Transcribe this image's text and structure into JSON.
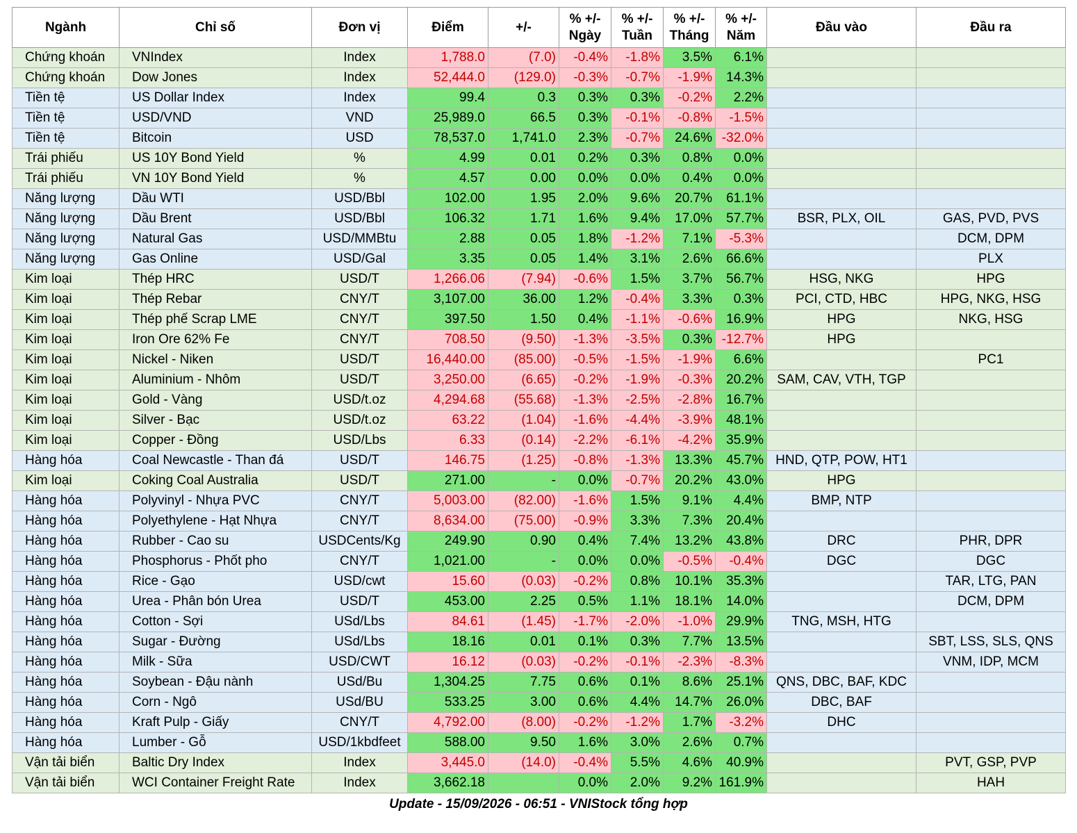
{
  "table": {
    "header": [
      "Ngành",
      "Chỉ số",
      "Đơn vị",
      "Điểm",
      "+/-",
      "% +/-\nNgày",
      "% +/-\nTuần",
      "% +/-\nTháng",
      "% +/-\nNăm",
      "Đầu vào",
      "Đầu ra"
    ],
    "rows": [
      [
        "Chứng khoán",
        "VNIndex",
        "Index",
        "1,788.0",
        "(7.0)",
        "-0.4%",
        "-1.8%",
        "3.5%",
        "6.1%",
        null,
        null
      ],
      [
        "Chứng khoán",
        "Dow Jones",
        "Index",
        "52,444.0",
        "(129.0)",
        "-0.3%",
        "-0.7%",
        "-1.9%",
        "14.3%",
        null,
        null
      ],
      [
        "Tiền tệ",
        "US Dollar Index",
        "Index",
        "99.4",
        "0.3",
        "0.3%",
        "0.3%",
        "-0.2%",
        "2.2%",
        null,
        null
      ],
      [
        "Tiền tệ",
        "USD/VND",
        "VND",
        "25,989.0",
        "66.5",
        "0.3%",
        "-0.1%",
        "-0.8%",
        "-1.5%",
        null,
        null
      ],
      [
        "Tiền tệ",
        "Bitcoin",
        "USD",
        "78,537.0",
        "1,741.0",
        "2.3%",
        "-0.7%",
        "24.6%",
        "-32.0%",
        null,
        null
      ],
      [
        "Trái phiếu",
        "US 10Y Bond Yield",
        "%",
        "4.99",
        "0.01",
        "0.2%",
        "0.3%",
        "0.8%",
        "0.0%",
        null,
        null
      ],
      [
        "Trái phiếu",
        "VN 10Y Bond Yield",
        "%",
        "4.57",
        "0.00",
        "0.0%",
        "0.0%",
        "0.4%",
        "0.0%",
        null,
        null
      ],
      [
        "Năng lượng",
        "Dầu WTI",
        "USD/Bbl",
        "102.00",
        "1.95",
        "2.0%",
        "9.6%",
        "20.7%",
        "61.1%",
        null,
        null
      ],
      [
        "Năng lượng",
        "Dầu Brent",
        "USD/Bbl",
        "106.32",
        "1.71",
        "1.6%",
        "9.4%",
        "17.0%",
        "57.7%",
        "BSR, PLX, OIL",
        "GAS, PVD, PVS"
      ],
      [
        "Năng lượng",
        "Natural Gas",
        "USD/MMBtu",
        "2.88",
        "0.05",
        "1.8%",
        "-1.2%",
        "7.1%",
        "-5.3%",
        null,
        "DCM, DPM"
      ],
      [
        "Năng lượng",
        "Gas Online",
        "USD/Gal",
        "3.35",
        "0.05",
        "1.4%",
        "3.1%",
        "2.6%",
        "66.6%",
        null,
        "PLX"
      ],
      [
        "Kim loại",
        "Thép HRC",
        "USD/T",
        "1,266.06",
        "(7.94)",
        "-0.6%",
        "1.5%",
        "3.7%",
        "56.7%",
        "HSG, NKG",
        "HPG"
      ],
      [
        "Kim loại",
        "Thép Rebar",
        "CNY/T",
        "3,107.00",
        "36.00",
        "1.2%",
        "-0.4%",
        "3.3%",
        "0.3%",
        "PCI, CTD, HBC",
        "HPG, NKG, HSG"
      ],
      [
        "Kim loại",
        "Thép phế Scrap LME",
        "CNY/T",
        "397.50",
        "1.50",
        "0.4%",
        "-1.1%",
        "-0.6%",
        "16.9%",
        "HPG",
        "NKG, HSG"
      ],
      [
        "Kim loại",
        "Iron Ore 62% Fe",
        "CNY/T",
        "708.50",
        "(9.50)",
        "-1.3%",
        "-3.5%",
        "0.3%",
        "-12.7%",
        "HPG",
        null
      ],
      [
        "Kim loại",
        "Nickel - Niken",
        "USD/T",
        "16,440.00",
        "(85.00)",
        "-0.5%",
        "-1.5%",
        "-1.9%",
        "6.6%",
        null,
        "PC1"
      ],
      [
        "Kim loại",
        "Aluminium - Nhôm",
        "USD/T",
        "3,250.00",
        "(6.65)",
        "-0.2%",
        "-1.9%",
        "-0.3%",
        "20.2%",
        "SAM, CAV, VTH, TGP",
        null
      ],
      [
        "Kim loại",
        "Gold - Vàng",
        "USD/t.oz",
        "4,294.68",
        "(55.68)",
        "-1.3%",
        "-2.5%",
        "-2.8%",
        "16.7%",
        null,
        null
      ],
      [
        "Kim loại",
        "Silver - Bạc",
        "USD/t.oz",
        "63.22",
        "(1.04)",
        "-1.6%",
        "-4.4%",
        "-3.9%",
        "48.1%",
        null,
        null
      ],
      [
        "Kim loại",
        "Copper - Đồng",
        "USD/Lbs",
        "6.33",
        "(0.14)",
        "-2.2%",
        "-6.1%",
        "-4.2%",
        "35.9%",
        null,
        null
      ],
      [
        "Hàng hóa",
        "Coal Newcastle - Than đá",
        "USD/T",
        "146.75",
        "(1.25)",
        "-0.8%",
        "-1.3%",
        "13.3%",
        "45.7%",
        "HND, QTP, POW, HT1",
        null
      ],
      [
        "Kim loại",
        "Coking Coal Australia",
        "USD/T",
        "271.00",
        "-",
        "0.0%",
        "-0.7%",
        "20.2%",
        "43.0%",
        "HPG",
        null
      ],
      [
        "Hàng hóa",
        "Polyvinyl - Nhựa PVC",
        "CNY/T",
        "5,003.00",
        "(82.00)",
        "-1.6%",
        "1.5%",
        "9.1%",
        "4.4%",
        "BMP, NTP",
        null
      ],
      [
        "Hàng hóa",
        "Polyethylene - Hạt Nhựa",
        "CNY/T",
        "8,634.00",
        "(75.00)",
        "-0.9%",
        "3.3%",
        "7.3%",
        "20.4%",
        null,
        null
      ],
      [
        "Hàng hóa",
        "Rubber - Cao su",
        "USDCents/Kg",
        "249.90",
        "0.90",
        "0.4%",
        "7.4%",
        "13.2%",
        "43.8%",
        "DRC",
        "PHR, DPR"
      ],
      [
        "Hàng hóa",
        "Phosphorus - Phốt pho",
        "CNY/T",
        "1,021.00",
        "-",
        "0.0%",
        "0.0%",
        "-0.5%",
        "-0.4%",
        "DGC",
        "DGC"
      ],
      [
        "Hàng hóa",
        "Rice - Gạo",
        "USD/cwt",
        "15.60",
        "(0.03)",
        "-0.2%",
        "0.8%",
        "10.1%",
        "35.3%",
        null,
        "TAR, LTG, PAN"
      ],
      [
        "Hàng hóa",
        "Urea - Phân bón Urea",
        "USD/T",
        "453.00",
        "2.25",
        "0.5%",
        "1.1%",
        "18.1%",
        "14.0%",
        null,
        "DCM, DPM"
      ],
      [
        "Hàng hóa",
        "Cotton - Sợi",
        "USd/Lbs",
        "84.61",
        "(1.45)",
        "-1.7%",
        "-2.0%",
        "-1.0%",
        "29.9%",
        "TNG, MSH, HTG",
        null
      ],
      [
        "Hàng hóa",
        "Sugar - Đường",
        "USd/Lbs",
        "18.16",
        "0.01",
        "0.1%",
        "0.3%",
        "7.7%",
        "13.5%",
        null,
        "SBT, LSS, SLS, QNS"
      ],
      [
        "Hàng hóa",
        "Milk - Sữa",
        "USD/CWT",
        "16.12",
        "(0.03)",
        "-0.2%",
        "-0.1%",
        "-2.3%",
        "-8.3%",
        null,
        "VNM, IDP, MCM"
      ],
      [
        "Hàng hóa",
        "Soybean - Đậu nành",
        "USd/Bu",
        "1,304.25",
        "7.75",
        "0.6%",
        "0.1%",
        "8.6%",
        "25.1%",
        "QNS, DBC, BAF, KDC",
        null
      ],
      [
        "Hàng hóa",
        "Corn - Ngô",
        "USd/BU",
        "533.25",
        "3.00",
        "0.6%",
        "4.4%",
        "14.7%",
        "26.0%",
        "DBC, BAF",
        null
      ],
      [
        "Hàng hóa",
        "Kraft Pulp - Giấy",
        "CNY/T",
        "4,792.00",
        "(8.00)",
        "-0.2%",
        "-1.2%",
        "1.7%",
        "-3.2%",
        "DHC",
        null
      ],
      [
        "Hàng hóa",
        "Lumber - Gỗ",
        "USD/1kbdfeet",
        "588.00",
        "9.50",
        "1.6%",
        "3.0%",
        "2.6%",
        "0.7%",
        null,
        null
      ],
      [
        "Vận tải biển",
        "Baltic Dry Index",
        "Index",
        "3,445.0",
        "(14.0)",
        "-0.4%",
        "5.5%",
        "4.6%",
        "40.9%",
        null,
        "PVT, GSP, PVP"
      ],
      [
        "Vận tải biển",
        "WCI Container Freight Rate",
        "Index",
        "3,662.18",
        null,
        "0.0%",
        "2.0%",
        "9.2%",
        "161.9%",
        null,
        "HAH"
      ]
    ]
  },
  "footer": "Update - 15/09/2026 - 06:51 - VNIStock tổng hợp"
}
